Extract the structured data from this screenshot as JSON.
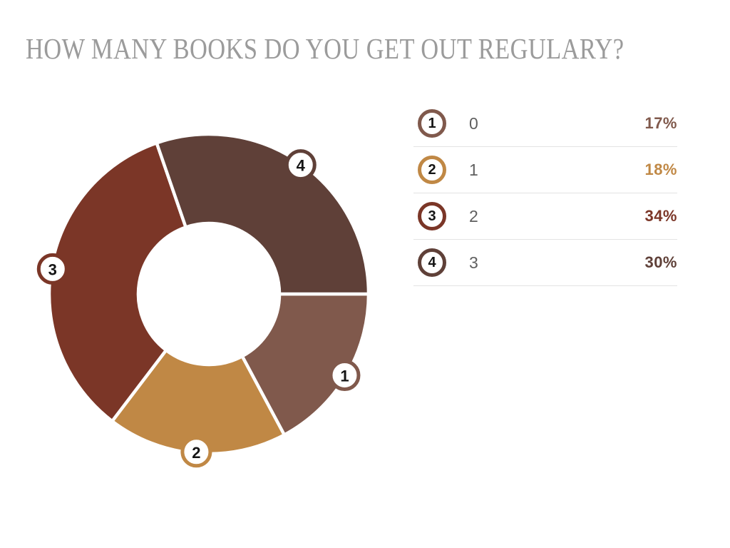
{
  "title": {
    "text": "HOW MANY BOOKS DO YOU GET OUT REGULARY?",
    "color": "#9b9b9b"
  },
  "chart_data": {
    "type": "pie",
    "subtype": "donut",
    "title": "HOW MANY BOOKS DO YOU GET OUT REGULARY?",
    "start_angle_deg": 0,
    "direction": "clockwise",
    "inner_radius_ratio": 0.44,
    "legend_position": "right",
    "unit": "%",
    "categories": [
      "0",
      "1",
      "2",
      "3"
    ],
    "values": [
      17,
      18,
      34,
      30
    ],
    "slices": [
      {
        "num": "1",
        "label": "0",
        "value": 17,
        "pct": "17%",
        "color": "#80594c"
      },
      {
        "num": "2",
        "label": "1",
        "value": 18,
        "pct": "18%",
        "color": "#c08845"
      },
      {
        "num": "3",
        "label": "2",
        "value": 34,
        "pct": "34%",
        "color": "#7b3627"
      },
      {
        "num": "4",
        "label": "3",
        "value": 30,
        "pct": "30%",
        "color": "#5f4038"
      }
    ]
  },
  "style": {
    "background": "#ffffff",
    "gap_color": "#ffffff",
    "separator_color": "#e3e3e3",
    "label_color": "#5f5f5f",
    "badge_number_color": "#151515",
    "badge_fill": "#ffffff"
  }
}
